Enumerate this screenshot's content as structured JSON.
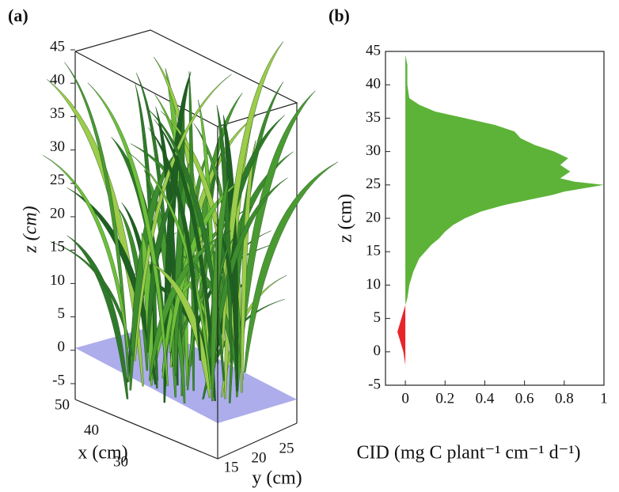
{
  "chart_data": [
    {
      "type": "scene3d",
      "panel": "(a)",
      "zlabel": "z (cm)",
      "zlim": [
        -5,
        45
      ],
      "zticks": [
        -5,
        0,
        5,
        10,
        15,
        20,
        25,
        30,
        35,
        40,
        45
      ],
      "xlabel": "x (cm)",
      "xticks": [
        50,
        40,
        30
      ],
      "ylabel": "y (cm)",
      "yticks": [
        15,
        20,
        25
      ]
    },
    {
      "type": "profile",
      "panel": "(b)",
      "xlabel": "CID (mg C plant⁻¹ cm⁻¹ d⁻¹)",
      "ylabel": "z (cm)",
      "xlim": [
        -0.1,
        1
      ],
      "xticks": [
        0,
        0.2,
        0.4,
        0.6,
        0.8,
        1
      ],
      "ylim": [
        -5,
        45
      ],
      "yticks": [
        -5,
        0,
        5,
        10,
        15,
        20,
        25,
        30,
        35,
        40,
        45
      ],
      "series": [
        {
          "color": "#5db338",
          "z": [
            7,
            8,
            10,
            12,
            14,
            15,
            16,
            17,
            18,
            19,
            20,
            21,
            22,
            23,
            23.5,
            24,
            24.5,
            25,
            25.5,
            26,
            27,
            28,
            29,
            30,
            31,
            32,
            33,
            34,
            35,
            36,
            37,
            38,
            40,
            43,
            44.5
          ],
          "values": [
            0,
            0.01,
            0.02,
            0.04,
            0.07,
            0.1,
            0.13,
            0.17,
            0.2,
            0.24,
            0.3,
            0.38,
            0.5,
            0.66,
            0.74,
            0.8,
            0.9,
            1,
            0.85,
            0.78,
            0.83,
            0.78,
            0.82,
            0.75,
            0.65,
            0.58,
            0.55,
            0.45,
            0.3,
            0.15,
            0.07,
            0.02,
            0.01,
            0.01,
            0
          ]
        },
        {
          "color": "#e8262a",
          "z": [
            -2,
            0,
            2,
            3,
            4,
            5,
            6,
            7
          ],
          "values": [
            0,
            -0.01,
            -0.03,
            -0.04,
            -0.03,
            -0.02,
            -0.01,
            0
          ]
        }
      ]
    }
  ]
}
